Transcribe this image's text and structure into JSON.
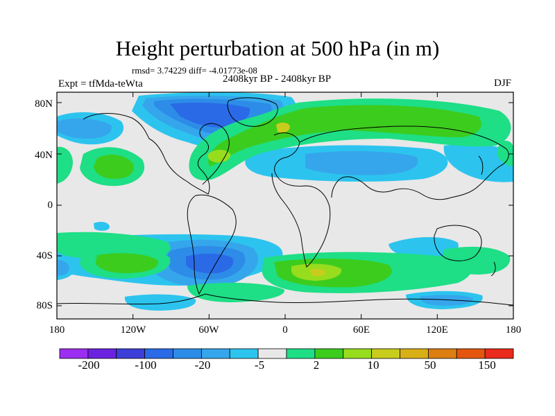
{
  "title": "Height perturbation at 500 hPa (in m)",
  "stats": "rmsd= 3.74229 diff= -4.01773e-08",
  "period": "2408kyr BP - 2408kyr BP",
  "expt": "Expt = tfMda-teWta",
  "season": "DJF",
  "lat_labels": [
    "80N",
    "40N",
    "0",
    "40S",
    "80S"
  ],
  "lon_labels": [
    "180",
    "120W",
    "60W",
    "0",
    "60E",
    "120E",
    "180"
  ],
  "colorbar": {
    "colors": [
      "#9b2ef0",
      "#6a22e0",
      "#3c3ed8",
      "#2a6ae6",
      "#2d8ce8",
      "#36a6ec",
      "#2cc4ee",
      "#e8e8e8",
      "#1ede86",
      "#3ccc1e",
      "#98dc1e",
      "#c8cc1c",
      "#d8b016",
      "#dc7e10",
      "#e4560e",
      "#ea2a1c"
    ],
    "labels": [
      "-200",
      "-100",
      "-20",
      "-5",
      "2",
      "10",
      "50",
      "150"
    ]
  },
  "palette": {
    "land_gray": "#e8e8e8",
    "cyan": "#2cc4ee",
    "light_blue": "#36a6ec",
    "mid_blue": "#2d8ce8",
    "blue": "#2a6ae6",
    "mint": "#1ede86",
    "green": "#3ccc1e",
    "lime": "#98dc1e",
    "yellow": "#c8cc1c"
  }
}
